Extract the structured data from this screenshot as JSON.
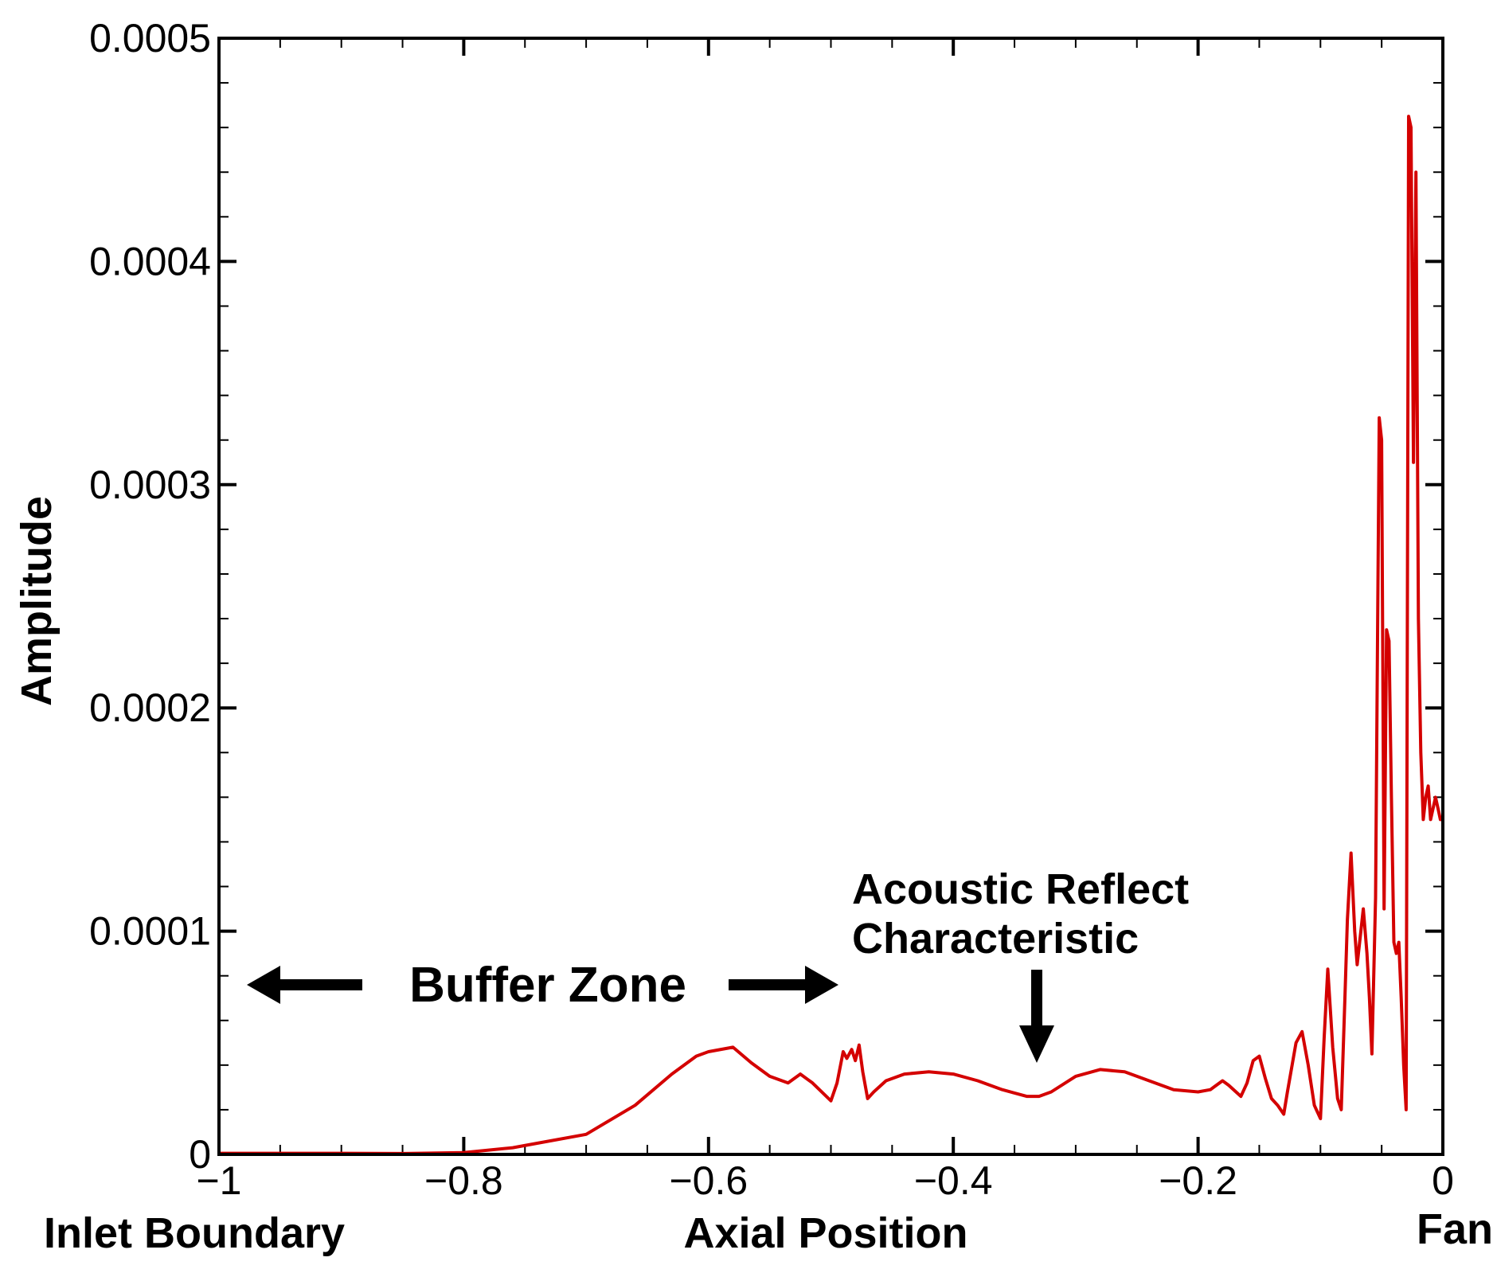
{
  "chart_data": {
    "type": "line",
    "title": "",
    "xlabel": "Axial Position",
    "ylabel": "Amplitude",
    "xlim": [
      -1,
      0
    ],
    "ylim": [
      0,
      0.0005
    ],
    "x_ticks": [
      -1,
      -0.8,
      -0.6,
      -0.4,
      -0.2,
      0
    ],
    "x_tick_labels": [
      "−1",
      "−0.8",
      "−0.6",
      "−0.4",
      "−0.2",
      "0"
    ],
    "y_ticks": [
      0,
      0.0001,
      0.0002,
      0.0003,
      0.0004,
      0.0005
    ],
    "y_tick_labels": [
      "0",
      "0.0001",
      "0.0002",
      "0.0003",
      "0.0004",
      "0.0005"
    ],
    "grid": false,
    "line_color": "#d40000",
    "annotations": {
      "left_end_label": "Inlet Boundary",
      "right_end_label": "Fan",
      "buffer_zone": "Buffer Zone",
      "reflect_line1": "Acoustic Reflect",
      "reflect_line2": "Characteristic"
    },
    "series": [
      {
        "name": "",
        "x": [
          -1.0,
          -0.9,
          -0.85,
          -0.8,
          -0.76,
          -0.74,
          -0.7,
          -0.66,
          -0.63,
          -0.61,
          -0.6,
          -0.58,
          -0.565,
          -0.55,
          -0.535,
          -0.525,
          -0.515,
          -0.5,
          -0.495,
          -0.49,
          -0.487,
          -0.483,
          -0.48,
          -0.477,
          -0.474,
          -0.47,
          -0.465,
          -0.455,
          -0.44,
          -0.42,
          -0.4,
          -0.38,
          -0.36,
          -0.34,
          -0.33,
          -0.32,
          -0.3,
          -0.28,
          -0.26,
          -0.24,
          -0.22,
          -0.2,
          -0.19,
          -0.18,
          -0.175,
          -0.165,
          -0.16,
          -0.155,
          -0.15,
          -0.145,
          -0.14,
          -0.135,
          -0.13,
          -0.127,
          -0.12,
          -0.115,
          -0.11,
          -0.105,
          -0.1,
          -0.097,
          -0.094,
          -0.09,
          -0.086,
          -0.083,
          -0.08,
          -0.078,
          -0.075,
          -0.072,
          -0.07,
          -0.068,
          -0.065,
          -0.062,
          -0.06,
          -0.058,
          -0.055,
          -0.052,
          -0.05,
          -0.048,
          -0.046,
          -0.044,
          -0.042,
          -0.04,
          -0.038,
          -0.036,
          -0.034,
          -0.032,
          -0.03,
          -0.028,
          -0.026,
          -0.024,
          -0.022,
          -0.02,
          -0.018,
          -0.016,
          -0.014,
          -0.012,
          -0.01,
          -0.008,
          -0.006,
          -0.004,
          -0.002,
          0.0
        ],
        "y": [
          5e-07,
          5e-07,
          4e-07,
          8e-07,
          3e-06,
          5e-06,
          9e-06,
          2.2e-05,
          3.6e-05,
          4.4e-05,
          4.6e-05,
          4.8e-05,
          4.1e-05,
          3.5e-05,
          3.2e-05,
          3.6e-05,
          3.2e-05,
          2.4e-05,
          3.2e-05,
          4.6e-05,
          4.3e-05,
          4.7e-05,
          4.2e-05,
          4.9e-05,
          3.7e-05,
          2.5e-05,
          2.8e-05,
          3.3e-05,
          3.6e-05,
          3.7e-05,
          3.6e-05,
          3.3e-05,
          2.9e-05,
          2.6e-05,
          2.6e-05,
          2.8e-05,
          3.5e-05,
          3.8e-05,
          3.7e-05,
          3.3e-05,
          2.9e-05,
          2.8e-05,
          2.9e-05,
          3.3e-05,
          3.1e-05,
          2.6e-05,
          3.2e-05,
          4.2e-05,
          4.4e-05,
          3.4e-05,
          2.5e-05,
          2.2e-05,
          1.8e-05,
          2.8e-05,
          5e-05,
          5.5e-05,
          4e-05,
          2.2e-05,
          1.6e-05,
          5.2e-05,
          8.3e-05,
          4.8e-05,
          2.5e-05,
          2e-05,
          7e-05,
          0.000105,
          0.000135,
          0.0001,
          8.5e-05,
          9.5e-05,
          0.00011,
          9e-05,
          7e-05,
          4.5e-05,
          0.000115,
          0.00033,
          0.00032,
          0.00011,
          0.000235,
          0.00023,
          0.00016,
          9.5e-05,
          9e-05,
          9.5e-05,
          7e-05,
          4e-05,
          2e-05,
          0.000465,
          0.00046,
          0.00031,
          0.00044,
          0.00024,
          0.00018,
          0.00015,
          0.00016,
          0.000165,
          0.00015,
          0.000155,
          0.00016,
          0.000155,
          0.00015,
          0.00015
        ]
      }
    ]
  }
}
